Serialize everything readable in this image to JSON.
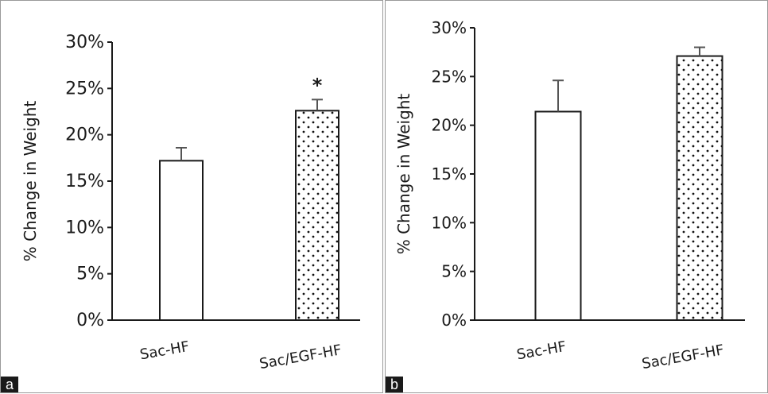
{
  "chart_data": [
    {
      "type": "bar",
      "panel_label": "a",
      "ylabel": "% Change in Weight",
      "categories": [
        "Sac-HF",
        "Sac/EGF-HF"
      ],
      "values": [
        17.2,
        22.6
      ],
      "errors": [
        1.4,
        1.2
      ],
      "patterns": [
        "solid-white",
        "dotted"
      ],
      "annotations": [
        "",
        "*"
      ],
      "ylim": [
        0,
        30
      ],
      "yticks": [
        "0%",
        "5%",
        "10%",
        "15%",
        "20%",
        "25%",
        "30%"
      ],
      "grid": false
    },
    {
      "type": "bar",
      "panel_label": "b",
      "ylabel": "% Change in Weight",
      "categories": [
        "Sac-HF",
        "Sac/EGF-HF"
      ],
      "values": [
        21.4,
        27.1
      ],
      "errors": [
        3.2,
        0.9
      ],
      "patterns": [
        "solid-white",
        "dotted"
      ],
      "annotations": [
        "",
        ""
      ],
      "ylim": [
        0,
        30
      ],
      "yticks": [
        "0%",
        "5%",
        "10%",
        "15%",
        "20%",
        "25%",
        "30%"
      ],
      "grid": false
    }
  ]
}
